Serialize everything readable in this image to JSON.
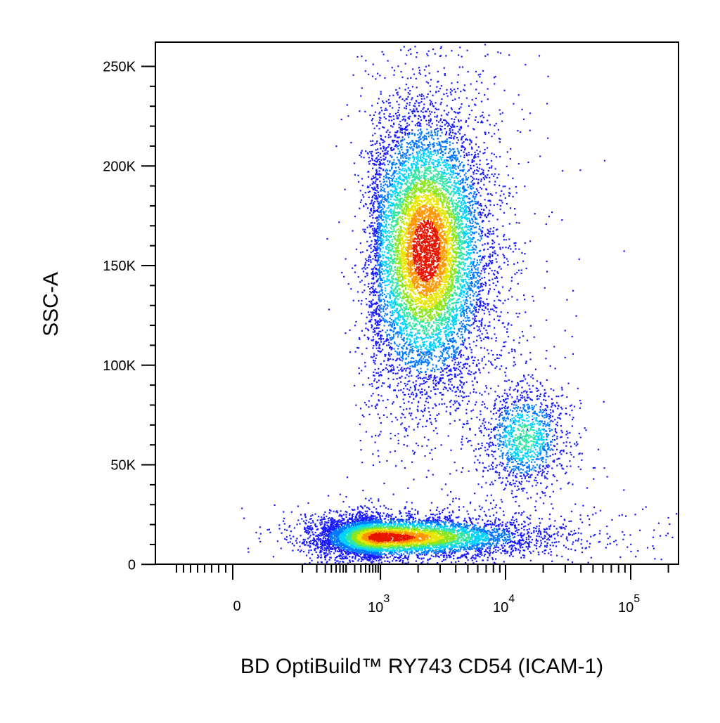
{
  "chart_data": {
    "type": "scatter",
    "title": "",
    "plot_style": "flow cytometry pseudocolor density dot plot",
    "xlabel": "BD OptiBuild™ RY743 CD54 (ICAM-1)",
    "ylabel": "SSC-A",
    "x_scale": "biexponential",
    "y_scale": "linear",
    "xlim": [
      -150,
      200000
    ],
    "ylim": [
      -3000,
      262000
    ],
    "x_ticks": [
      {
        "value": 0,
        "base": "0",
        "exp": ""
      },
      {
        "value": 1000,
        "base": "10",
        "exp": "3"
      },
      {
        "value": 10000,
        "base": "10",
        "exp": "4"
      },
      {
        "value": 100000,
        "base": "10",
        "exp": "5"
      }
    ],
    "y_ticks": [
      {
        "value": 0,
        "label": "0"
      },
      {
        "value": 50000,
        "label": "50K"
      },
      {
        "value": 100000,
        "label": "100K"
      },
      {
        "value": 150000,
        "label": "150K"
      },
      {
        "value": 200000,
        "label": "200K"
      },
      {
        "value": 250000,
        "label": "250K"
      }
    ],
    "grid": false,
    "legend": "none",
    "density_colormap": [
      "#1a1aff",
      "#0078ff",
      "#00d2ff",
      "#31e6a3",
      "#8ce61e",
      "#e6e600",
      "#ff9600",
      "#e61400"
    ],
    "populations": [
      {
        "x_center": 2300,
        "x_log_spread": 0.25,
        "y_center": 158000,
        "y_spread": 35000,
        "events": 9500,
        "peak_density_color": "red"
      },
      {
        "x_center": 14000,
        "x_log_spread": 0.17,
        "y_center": 64000,
        "y_spread": 13000,
        "events": 1300,
        "peak_density_color": "cyan"
      },
      {
        "x_center": 1000,
        "x_log_spread": 0.6,
        "y_center": 14000,
        "y_spread": 5000,
        "events": 7000,
        "peak_density_color": "red"
      }
    ]
  }
}
